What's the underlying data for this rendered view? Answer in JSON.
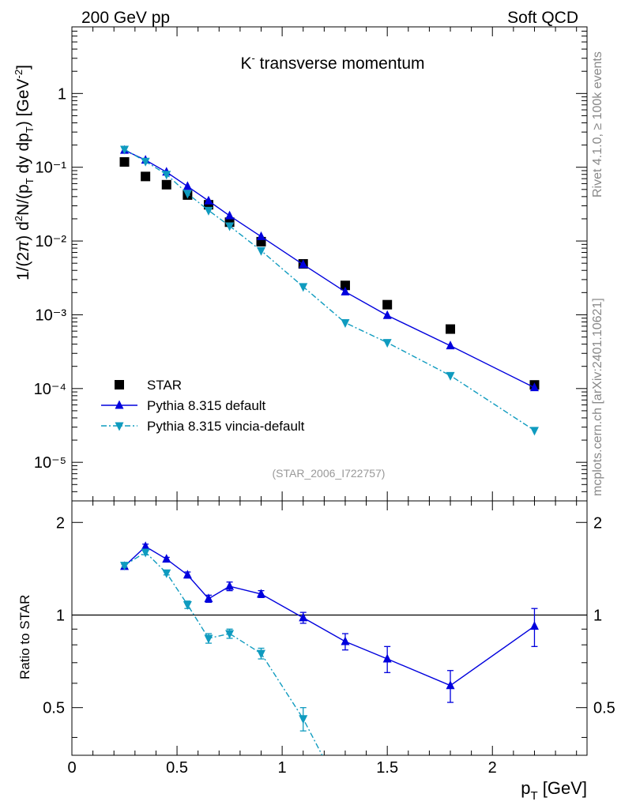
{
  "header": {
    "left": "200 GeV pp",
    "right": "Soft QCD"
  },
  "side_labels": {
    "rivet": "Rivet 4.1.0, ≥ 100k events",
    "mcplots": "mcplots.cern.ch [arXiv:2401.10621]"
  },
  "colors": {
    "star": "#000000",
    "default": "#0000dd",
    "vincia": "#0f9bbf"
  },
  "chart_data": [
    {
      "type": "scatter",
      "panel": "main",
      "title": "K⁻ transverse momentum",
      "ylabel": "1/(2π)  d²N/(p_T dy dp_T) [GeV⁻²]",
      "analysis_tag": "(STAR_2006_I722757)",
      "y_scale": "log",
      "xlim": [
        0,
        2.45
      ],
      "ylim": [
        3e-06,
        8
      ],
      "y_ticks": [
        {
          "value": 1e-05,
          "label": "10⁻⁵"
        },
        {
          "value": 0.0001,
          "label": "10⁻⁴"
        },
        {
          "value": 0.001,
          "label": "10⁻³"
        },
        {
          "value": 0.01,
          "label": "10⁻²"
        },
        {
          "value": 0.1,
          "label": "10⁻¹"
        },
        {
          "value": 1,
          "label": "1"
        }
      ],
      "legend_position": "bottom-left",
      "series": [
        {
          "name": "STAR",
          "style": "square",
          "color": "#000000",
          "x": [
            0.25,
            0.35,
            0.45,
            0.55,
            0.65,
            0.75,
            0.9,
            1.1,
            1.3,
            1.5,
            1.8,
            2.2
          ],
          "y": [
            0.118,
            0.075,
            0.058,
            0.042,
            0.031,
            0.018,
            0.0098,
            0.0049,
            0.0025,
            0.00137,
            0.00064,
            0.000112
          ]
        },
        {
          "name": "Pythia 8.315 default",
          "style": "triangle-up-solid",
          "color": "#0000dd",
          "x": [
            0.25,
            0.35,
            0.45,
            0.55,
            0.65,
            0.75,
            0.9,
            1.1,
            1.3,
            1.5,
            1.8,
            2.2
          ],
          "y": [
            0.17,
            0.125,
            0.086,
            0.055,
            0.035,
            0.022,
            0.0115,
            0.0048,
            0.00205,
            0.00098,
            0.00038,
            0.000103
          ]
        },
        {
          "name": "Pythia 8.315 vincia-default",
          "style": "triangle-down-dashdot",
          "color": "#0f9bbf",
          "x": [
            0.25,
            0.35,
            0.45,
            0.55,
            0.65,
            0.75,
            0.9,
            1.1,
            1.3,
            1.5,
            1.8,
            2.2
          ],
          "y": [
            0.175,
            0.12,
            0.08,
            0.044,
            0.026,
            0.016,
            0.0074,
            0.0024,
            0.00078,
            0.00042,
            0.00015,
            2.7e-05
          ]
        }
      ]
    },
    {
      "type": "line",
      "panel": "ratio",
      "ylabel": "Ratio to STAR",
      "xlabel": "p_T [GeV]",
      "xlim": [
        0,
        2.45
      ],
      "ylim": [
        0.35,
        2.35
      ],
      "reference_line": 1,
      "x_ticks": [
        {
          "value": 0,
          "label": "0"
        },
        {
          "value": 0.5,
          "label": "0.5"
        },
        {
          "value": 1,
          "label": "1"
        },
        {
          "value": 1.5,
          "label": "1.5"
        },
        {
          "value": 2,
          "label": "2"
        }
      ],
      "y_ticks": [
        {
          "value": 0.5,
          "label": "0.5"
        },
        {
          "value": 1,
          "label": "1"
        },
        {
          "value": 2,
          "label": "2"
        }
      ],
      "series": [
        {
          "name": "Pythia 8.315 default",
          "style": "triangle-up-solid",
          "color": "#0000dd",
          "x": [
            0.25,
            0.35,
            0.45,
            0.55,
            0.65,
            0.75,
            0.9,
            1.1,
            1.3,
            1.5,
            1.8,
            2.2
          ],
          "y": [
            1.44,
            1.67,
            1.52,
            1.35,
            1.13,
            1.24,
            1.17,
            0.98,
            0.82,
            0.72,
            0.59,
            0.92
          ],
          "err": [
            0.02,
            0.03,
            0.02,
            0.03,
            0.03,
            0.04,
            0.03,
            0.04,
            0.05,
            0.07,
            0.07,
            0.13
          ]
        },
        {
          "name": "Pythia 8.315 vincia-default",
          "style": "triangle-down-dashdot",
          "color": "#0f9bbf",
          "x": [
            0.25,
            0.35,
            0.45,
            0.55,
            0.65,
            0.75,
            0.9,
            1.1,
            1.2
          ],
          "y": [
            1.45,
            1.6,
            1.37,
            1.08,
            0.84,
            0.87,
            0.75,
            0.46,
            0.34
          ],
          "err": [
            0.02,
            0.03,
            0.02,
            0.03,
            0.03,
            0.03,
            0.03,
            0.04,
            0
          ],
          "markers": 8
        }
      ]
    }
  ]
}
